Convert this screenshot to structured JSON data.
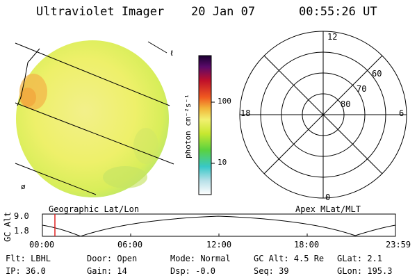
{
  "header": {
    "instrument": "Ultraviolet Imager",
    "date": "20 Jan 07",
    "time": "00:55:26 UT"
  },
  "colorbar": {
    "unit_label": "photon cm⁻²s⁻¹",
    "ticks": [
      "100",
      "10"
    ]
  },
  "polar": {
    "mlt_labels": [
      "12",
      "18",
      "6",
      "0"
    ],
    "lat_labels": [
      "60",
      "70",
      "80"
    ]
  },
  "image_panel": {
    "corner_marks": [
      "ℓ",
      "ø"
    ]
  },
  "plot": {
    "left_label": "Geographic Lat/Lon",
    "right_label": "Apex MLat/MLT",
    "ylabel": "GC Alt",
    "yticks": [
      "9.0",
      "1.8"
    ],
    "xticks": [
      "00:00",
      "06:00",
      "12:00",
      "18:00",
      "23:59"
    ]
  },
  "info": {
    "flt": "Flt: LBHL",
    "door": "Door: Open",
    "mode": "Mode: Normal",
    "gcalt": "GC Alt: 4.5 Re",
    "glat": "GLat:   2.1",
    "ip": "IP: 36.0",
    "gain": "Gain: 14",
    "dsp": "Dsp:   -0.0",
    "seq": "Seq: 39",
    "glon": "GLon: 195.3"
  }
}
